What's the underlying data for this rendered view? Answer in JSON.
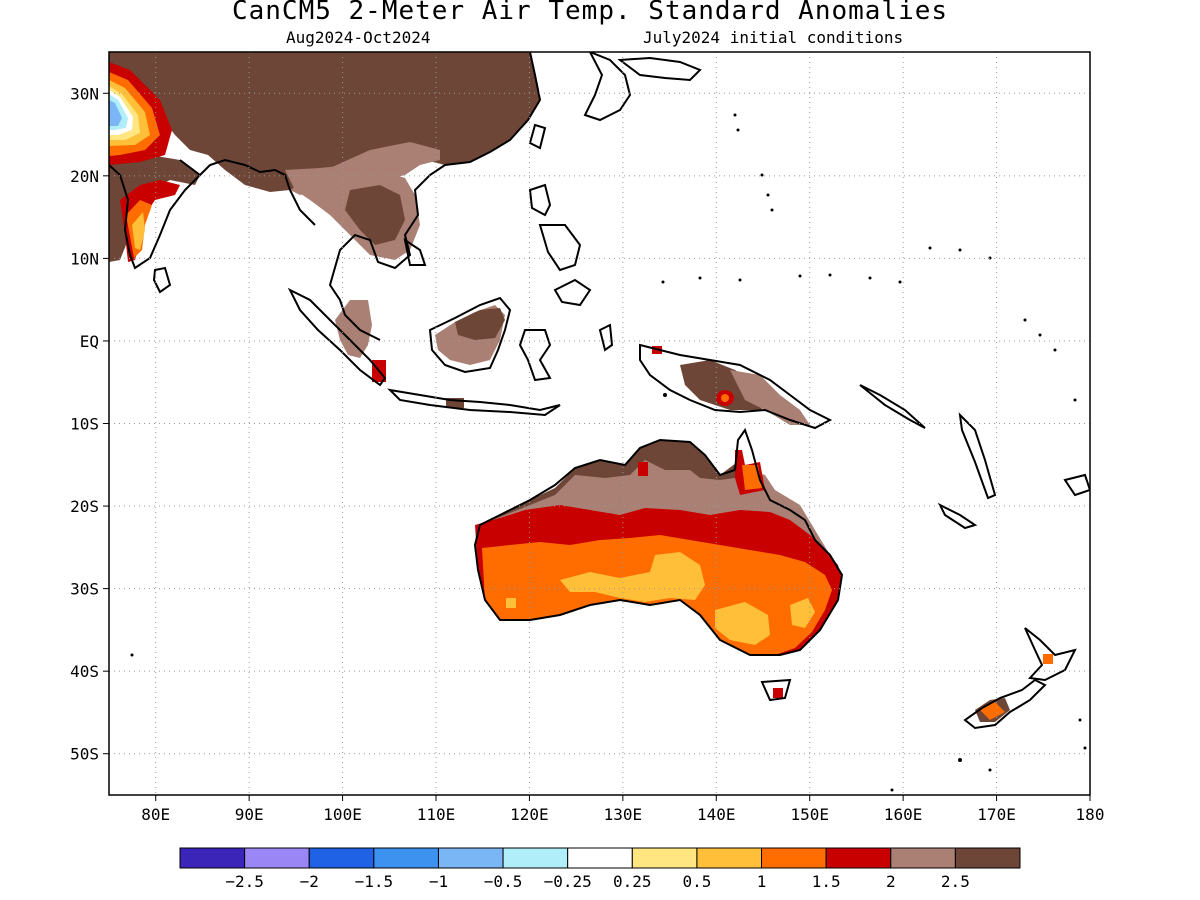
{
  "title": "CanCM5 2-Meter Air Temp. Standard Anomalies",
  "subtitle_left": "Aug2024-Oct2024",
  "subtitle_right": "July2024 initial conditions",
  "map": {
    "lon_range": [
      75,
      180
    ],
    "lat_range": [
      -55,
      35
    ],
    "grid": "dotted",
    "lon_ticks": [
      "80E",
      "90E",
      "100E",
      "110E",
      "120E",
      "130E",
      "140E",
      "150E",
      "160E",
      "170E",
      "180"
    ],
    "lat_ticks": [
      "30N",
      "20N",
      "10N",
      "EQ",
      "10S",
      "20S",
      "30S",
      "40S",
      "50S"
    ]
  },
  "colorbar": {
    "colors": [
      "#3b24b8",
      "#9b86f5",
      "#1f62e6",
      "#3d92f0",
      "#7ab6f6",
      "#b0eefa",
      "#ffffff",
      "#ffe680",
      "#ffbf38",
      "#ff6d00",
      "#c80000",
      "#ab8074",
      "#6e4638"
    ],
    "labels": [
      "-2.5",
      "-2",
      "-1.5",
      "-1",
      "-0.5",
      "-0.25",
      "0.25",
      "0.5",
      "1",
      "1.5",
      "2",
      "2.5"
    ]
  }
}
